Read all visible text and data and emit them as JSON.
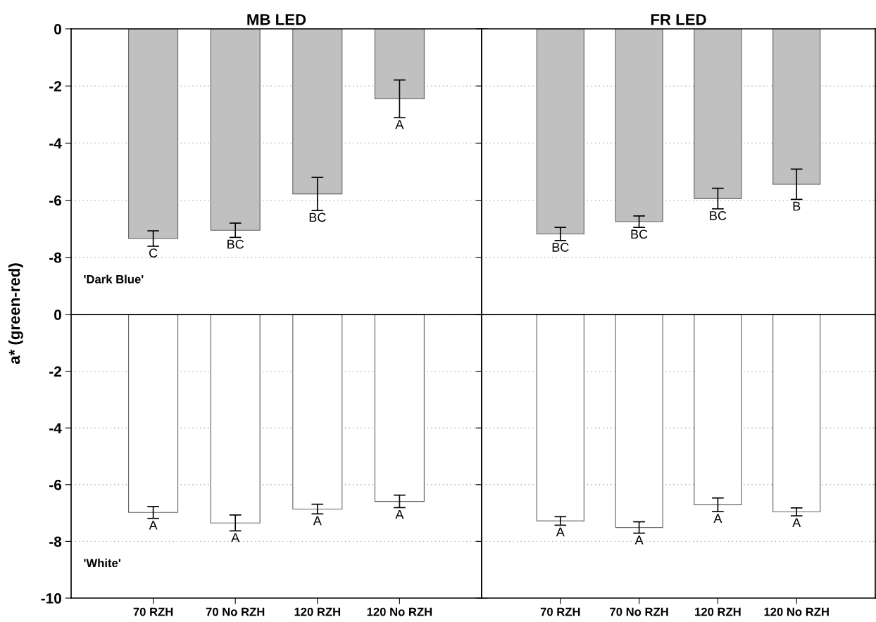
{
  "chart_data": [
    {
      "type": "bar",
      "title": "MB LED",
      "ylabel": "a* (green-red)",
      "categories": [
        "70 RZH",
        "70 No RZH",
        "120 RZH",
        "120 No RZH"
      ],
      "values": [
        -7.34,
        -7.05,
        -5.78,
        -2.45
      ],
      "errors": [
        0.27,
        0.25,
        0.58,
        0.66
      ],
      "color": "#c0c0c0",
      "ylim": [
        -10,
        0
      ],
      "yticks": [
        0,
        -2,
        -4,
        -6,
        -8
      ],
      "grid": "y",
      "tick_labels": "y",
      "annotations": [
        {
          "text": "C",
          "x": "70 RZH",
          "y": -7.34
        },
        {
          "text": "BC",
          "x": "70 No RZH",
          "y": -7.05
        },
        {
          "text": "BC",
          "x": "120 RZH",
          "y": -5.78
        },
        {
          "text": "A",
          "x": "120 No RZH",
          "y": -2.45
        },
        "'Dark Blue'"
      ]
    },
    {
      "type": "bar",
      "title": "FR LED",
      "categories": [
        "70 RZH",
        "70 No RZH",
        "120 RZH",
        "120 No RZH"
      ],
      "values": [
        -7.18,
        -6.75,
        -5.94,
        -5.44
      ],
      "errors": [
        0.23,
        0.2,
        0.36,
        0.53
      ],
      "color": "#c0c0c0",
      "ylim": [
        -10,
        0
      ],
      "yticks": [
        0,
        -2,
        -4,
        -6,
        -8
      ],
      "grid": "y",
      "tick_labels": false,
      "annotations": [
        {
          "text": "BC",
          "x": "70 RZH",
          "y": -7.18
        },
        {
          "text": "BC",
          "x": "70 No RZH",
          "y": -6.75
        },
        {
          "text": "BC",
          "x": "120 RZH",
          "y": -5.94
        },
        {
          "text": "B",
          "x": "120 No RZH",
          "y": -5.44
        }
      ]
    },
    {
      "type": "bar",
      "categories": [
        "70 RZH",
        "70 No RZH",
        "120 RZH",
        "120 No RZH"
      ],
      "values": [
        -6.98,
        -7.35,
        -6.86,
        -6.59
      ],
      "errors": [
        0.21,
        0.28,
        0.17,
        0.22
      ],
      "color": "#ffffff",
      "ylim": [
        -10,
        0
      ],
      "yticks": [
        0,
        -2,
        -4,
        -6,
        -8,
        -10
      ],
      "grid": "y",
      "annotations": [
        {
          "text": "A",
          "x": "70 RZH",
          "y": -6.98
        },
        {
          "text": "A",
          "x": "70 No RZH",
          "y": -7.35
        },
        {
          "text": "A",
          "x": "120 RZH",
          "y": -6.86
        },
        {
          "text": "A",
          "x": "120 No RZH",
          "y": -6.59
        },
        "'White'"
      ]
    },
    {
      "type": "bar",
      "categories": [
        "70 RZH",
        "70 No RZH",
        "120 RZH",
        "120 No RZH"
      ],
      "values": [
        -7.28,
        -7.51,
        -6.71,
        -6.96
      ],
      "errors": [
        0.15,
        0.2,
        0.24,
        0.14
      ],
      "color": "#ffffff",
      "ylim": [
        -10,
        0
      ],
      "yticks": [
        0,
        -2,
        -4,
        -6,
        -8,
        -10
      ],
      "grid": "y",
      "tick_labels": "x",
      "annotations": [
        {
          "text": "A",
          "x": "70 RZH",
          "y": -7.28
        },
        {
          "text": "A",
          "x": "70 No RZH",
          "y": -7.51
        },
        {
          "text": "A",
          "x": "120 RZH",
          "y": -6.71
        },
        {
          "text": "A",
          "x": "120 No RZH",
          "y": -6.96
        }
      ]
    }
  ]
}
